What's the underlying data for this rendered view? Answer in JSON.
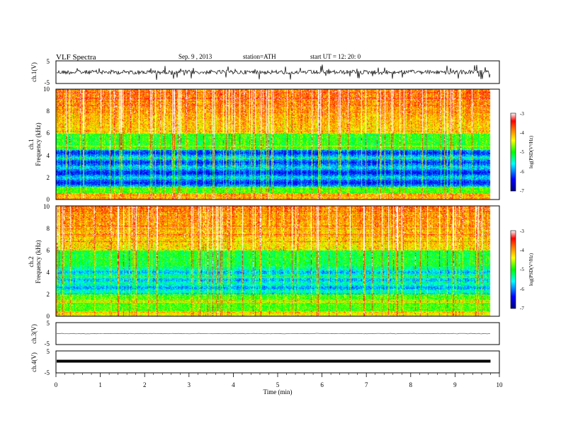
{
  "header": {
    "title": "VLF  Spectra",
    "date": "Sep. 9  , 2013",
    "station": "station=ATH",
    "start": "start  UT  =   12: 20: 0"
  },
  "chart_data": [
    {
      "type": "line",
      "panel": "ch1",
      "ylabel": "ch.1(V)",
      "ylim": [
        -5,
        5
      ],
      "yticks": [
        "5",
        "-5"
      ],
      "xlim": [
        0,
        10
      ],
      "trace": "noisy waveform centered near 0 V"
    },
    {
      "type": "heatmap",
      "panel": "ch1",
      "ylabel_line1": "ch.1",
      "ylabel_line2": "Frequency  (kHz)",
      "ylim": [
        0,
        10
      ],
      "yticks": [
        "0",
        "2",
        "4",
        "6",
        "8",
        "10"
      ],
      "colorbar": {
        "label": "log(PSD(V²/Hz)",
        "range": [
          -7,
          -3
        ],
        "ticks": [
          "-3",
          "-4",
          "-5",
          "-6",
          "-7"
        ],
        "colors": [
          "#000080",
          "#0000ff",
          "#00ffff",
          "#00ff00",
          "#ffff00",
          "#ff8000",
          "#ff0000",
          "#ffffff"
        ]
      },
      "data_end_min": 9.8
    },
    {
      "type": "heatmap",
      "panel": "ch2",
      "ylabel_line1": "ch.2",
      "ylabel_line2": "Frequency  (kHz)",
      "ylim": [
        0,
        10
      ],
      "yticks": [
        "0",
        "2",
        "4",
        "6",
        "8",
        "10"
      ],
      "colorbar": {
        "label": "log(PSD(V²/Hz)",
        "range": [
          -7,
          -3
        ],
        "ticks": [
          "-3",
          "-4",
          "-5",
          "-6",
          "-7"
        ]
      },
      "data_end_min": 9.8
    },
    {
      "type": "line",
      "panel": "ch3",
      "ylabel": "ch.3(V)",
      "ylim": [
        -5,
        5
      ],
      "yticks": [
        "5",
        "-5"
      ],
      "level": 0
    },
    {
      "type": "line",
      "panel": "ch4",
      "ylabel": "ch.4(V)",
      "ylim": [
        -5,
        5
      ],
      "yticks": [
        "5",
        "-5"
      ],
      "level": 0
    }
  ],
  "xaxis": {
    "label": "Time  (min)",
    "ticks": [
      "0",
      "1",
      "2",
      "3",
      "4",
      "5",
      "6",
      "7",
      "8",
      "9",
      "10"
    ],
    "xlim": [
      0,
      10
    ]
  }
}
